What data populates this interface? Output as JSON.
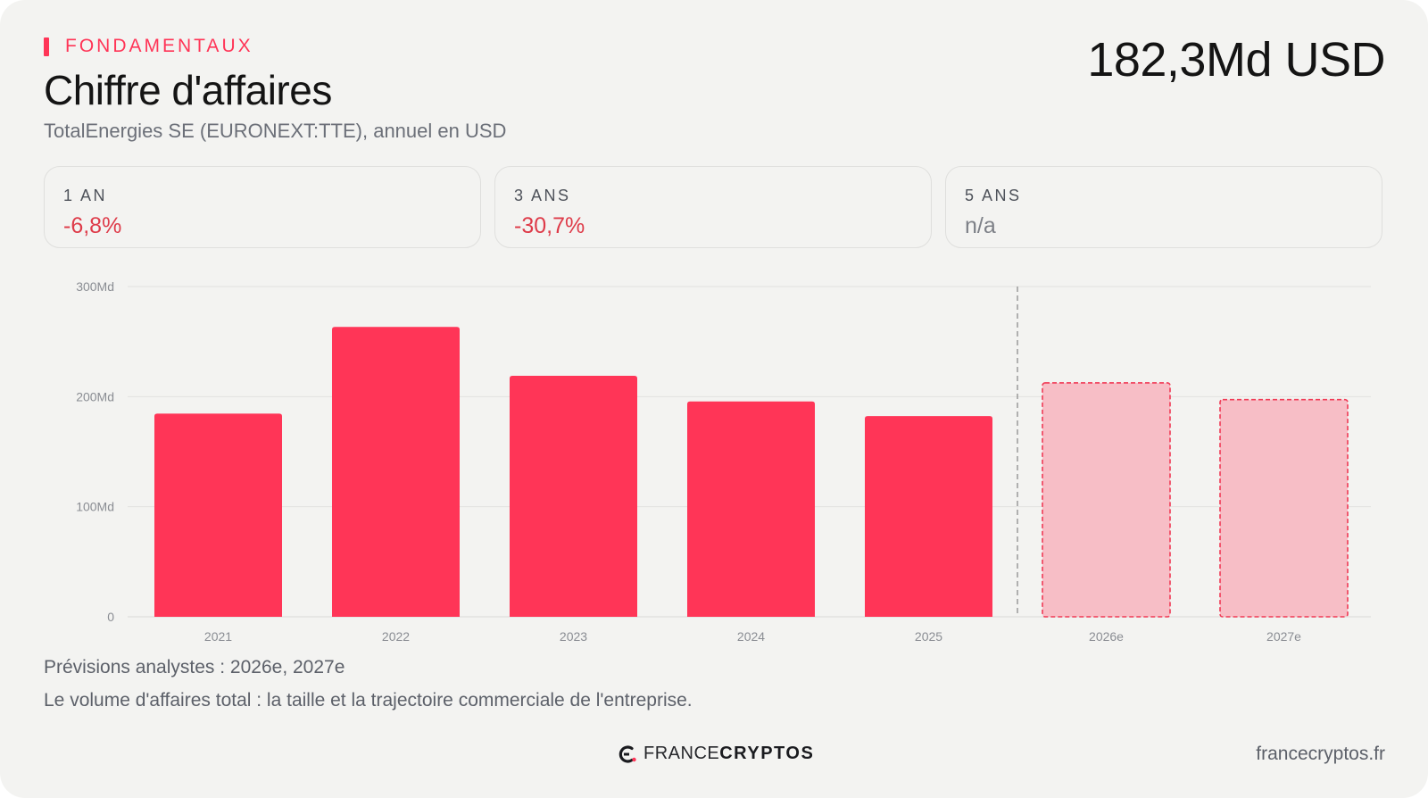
{
  "header": {
    "kicker": "FONDAMENTAUX",
    "title": "Chiffre d'affaires",
    "subtitle": "TotalEnergies SE (EURONEXT:TTE), annuel en USD",
    "headline_value": "182,3Md USD"
  },
  "stats": [
    {
      "label": "1 AN",
      "value": "-6,8%",
      "tone": "negative"
    },
    {
      "label": "3 ANS",
      "value": "-30,7%",
      "tone": "negative"
    },
    {
      "label": "5 ANS",
      "value": "n/a",
      "tone": "neutral"
    }
  ],
  "chart_data": {
    "type": "bar",
    "categories": [
      "2021",
      "2022",
      "2023",
      "2024",
      "2025",
      "2026e",
      "2027e"
    ],
    "values": [
      184.6,
      263.3,
      218.9,
      195.6,
      182.3,
      212.5,
      197.3
    ],
    "estimate_from_index": 5,
    "ylim": [
      0,
      300
    ],
    "yticks": [
      0,
      100,
      200,
      300
    ],
    "ytick_labels": [
      "0",
      "100Md",
      "200Md",
      "300Md"
    ],
    "grid": true,
    "colors": {
      "actual": "#ff3557",
      "estimate_fill": "#f7bec6",
      "estimate_border": "#f03a55",
      "divider": "#8c8c8c"
    }
  },
  "notes": {
    "forecast": "Prévisions analystes : 2026e, 2027e",
    "description": "Le volume d'affaires total : la taille et la trajectoire commerciale de l'entreprise."
  },
  "footer": {
    "brand_part1": "FRANCE",
    "brand_part2": "CRYPTOS",
    "site": "francecryptos.fr",
    "logo_icon": "francecryptos-logo-icon"
  }
}
